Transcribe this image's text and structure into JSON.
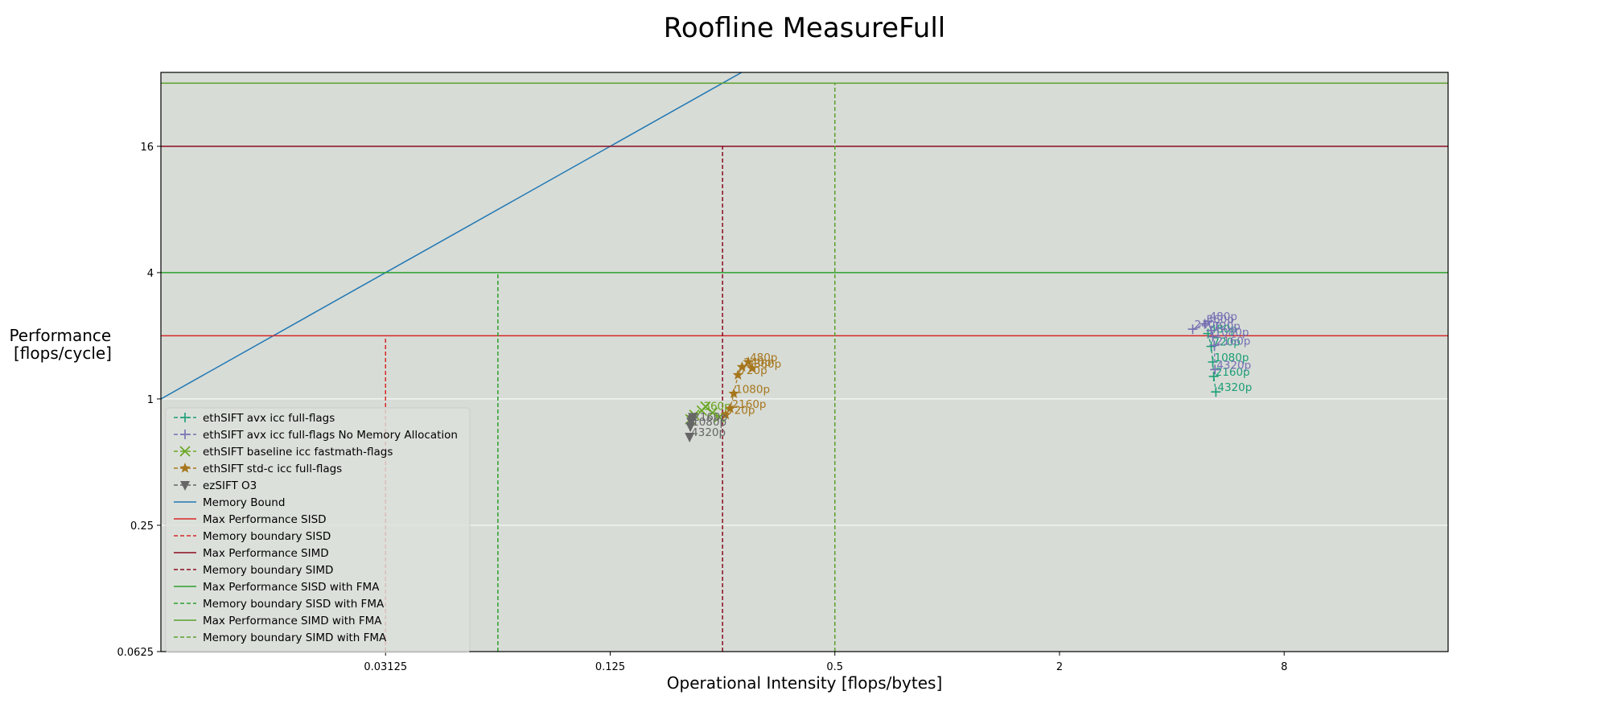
{
  "chart_data": {
    "type": "scatter",
    "title": "Roofline MeasureFull",
    "xlabel": "Operational Intensity [flops/bytes]",
    "ylabel_lines": [
      "Performance",
      "[flops/cycle]"
    ],
    "x_scale": "log2",
    "y_scale": "log2",
    "xlim": [
      0.0078125,
      22
    ],
    "ylim": [
      0.0625,
      36
    ],
    "x_ticks": [
      0.03125,
      0.125,
      0.5,
      2,
      8
    ],
    "x_tick_labels": [
      "0.03125",
      "0.125",
      "0.5",
      "2",
      "8"
    ],
    "y_ticks": [
      0.0625,
      0.25,
      1,
      4,
      16
    ],
    "y_tick_labels": [
      "0.0625",
      "0.25",
      "1",
      "4",
      "16"
    ],
    "grid": "horizontal, white",
    "background": "#d7dcd6",
    "legend_position": "lower-left",
    "series": [
      {
        "name": "ethSIFT avx icc full-flags",
        "color": "#1b9e77",
        "marker": "plus",
        "linestyle": "dashed",
        "points": [
          {
            "x": 5.0,
            "y": 2.05,
            "label": "480p"
          },
          {
            "x": 5.1,
            "y": 1.78,
            "label": "720p"
          },
          {
            "x": 5.15,
            "y": 1.5,
            "label": "1080p"
          },
          {
            "x": 5.18,
            "y": 1.28,
            "label": "2160p"
          },
          {
            "x": 5.25,
            "y": 1.08,
            "label": "4320p"
          }
        ]
      },
      {
        "name": "ethSIFT avx icc full-flags No Memory Allocation",
        "color": "#7570b3",
        "marker": "plus",
        "linestyle": "dashed",
        "points": [
          {
            "x": 4.55,
            "y": 2.15,
            "label": "240p"
          },
          {
            "x": 4.9,
            "y": 2.28,
            "label": "360p"
          },
          {
            "x": 5.0,
            "y": 2.35,
            "label": "480p"
          },
          {
            "x": 5.1,
            "y": 2.12,
            "label": "720p"
          },
          {
            "x": 5.15,
            "y": 1.98,
            "label": "1080p"
          },
          {
            "x": 5.2,
            "y": 1.8,
            "label": "2160p"
          },
          {
            "x": 5.22,
            "y": 1.38,
            "label": "4320p"
          }
        ]
      },
      {
        "name": "ethSIFT baseline icc fastmath-flags",
        "color": "#66a61e",
        "marker": "x",
        "linestyle": "dashed",
        "points": [
          {
            "x": 0.205,
            "y": 0.8,
            "label": ""
          },
          {
            "x": 0.21,
            "y": 0.84,
            "label": ""
          },
          {
            "x": 0.22,
            "y": 0.88,
            "label": "360p"
          },
          {
            "x": 0.225,
            "y": 0.92,
            "label": ""
          },
          {
            "x": 0.235,
            "y": 0.86,
            "label": ""
          },
          {
            "x": 0.245,
            "y": 0.82,
            "label": ""
          }
        ]
      },
      {
        "name": "ethSIFT std-c icc full-flags",
        "color": "#a6761d",
        "marker": "star",
        "linestyle": "dashed",
        "points": [
          {
            "x": 0.255,
            "y": 0.84,
            "label": "720p"
          },
          {
            "x": 0.262,
            "y": 0.9,
            "label": "2160p"
          },
          {
            "x": 0.268,
            "y": 1.06,
            "label": "1080p"
          },
          {
            "x": 0.275,
            "y": 1.3,
            "label": "720p"
          },
          {
            "x": 0.282,
            "y": 1.42,
            "label": "240p"
          },
          {
            "x": 0.293,
            "y": 1.5,
            "label": "480p"
          },
          {
            "x": 0.3,
            "y": 1.4,
            "label": "360p"
          }
        ]
      },
      {
        "name": "ezSIFT O3",
        "color": "#666666",
        "marker": "triangle-down",
        "linestyle": "dashed",
        "points": [
          {
            "x": 0.204,
            "y": 0.66,
            "label": "4320p"
          },
          {
            "x": 0.205,
            "y": 0.74,
            "label": "1080p"
          },
          {
            "x": 0.206,
            "y": 0.78,
            "label": "2160p"
          },
          {
            "x": 0.207,
            "y": 0.8,
            "label": ""
          },
          {
            "x": 0.208,
            "y": 0.82,
            "label": ""
          }
        ]
      }
    ],
    "roofline": [
      {
        "name": "Memory Bound",
        "kind": "diagonal",
        "color": "#1f77b4",
        "linestyle": "solid",
        "slope_flops_per_byte": 128
      },
      {
        "name": "Max Performance SISD",
        "kind": "horizontal",
        "value": 2,
        "color": "#d62728",
        "linestyle": "solid"
      },
      {
        "name": "Memory boundary SISD",
        "kind": "vertical",
        "value": 0.03125,
        "ymax": 2,
        "color": "#d62728",
        "linestyle": "dashed"
      },
      {
        "name": "Max Performance SIMD",
        "kind": "horizontal",
        "value": 16,
        "color": "#8b0a20",
        "linestyle": "solid"
      },
      {
        "name": "Memory boundary SIMD",
        "kind": "vertical",
        "value": 0.25,
        "ymax": 16,
        "color": "#8b0a20",
        "linestyle": "dashed"
      },
      {
        "name": "Max Performance SISD with FMA",
        "kind": "horizontal",
        "value": 4,
        "color": "#2ca02c",
        "linestyle": "solid"
      },
      {
        "name": "Memory boundary SISD with FMA",
        "kind": "vertical",
        "value": 0.0625,
        "ymax": 4,
        "color": "#2ca02c",
        "linestyle": "dashed"
      },
      {
        "name": "Max Performance SIMD with FMA",
        "kind": "horizontal",
        "value": 32,
        "color": "#5aa02c",
        "linestyle": "solid"
      },
      {
        "name": "Memory boundary SIMD with FMA",
        "kind": "vertical",
        "value": 0.5,
        "ymax": 32,
        "color": "#5aa02c",
        "linestyle": "dashed"
      }
    ]
  }
}
